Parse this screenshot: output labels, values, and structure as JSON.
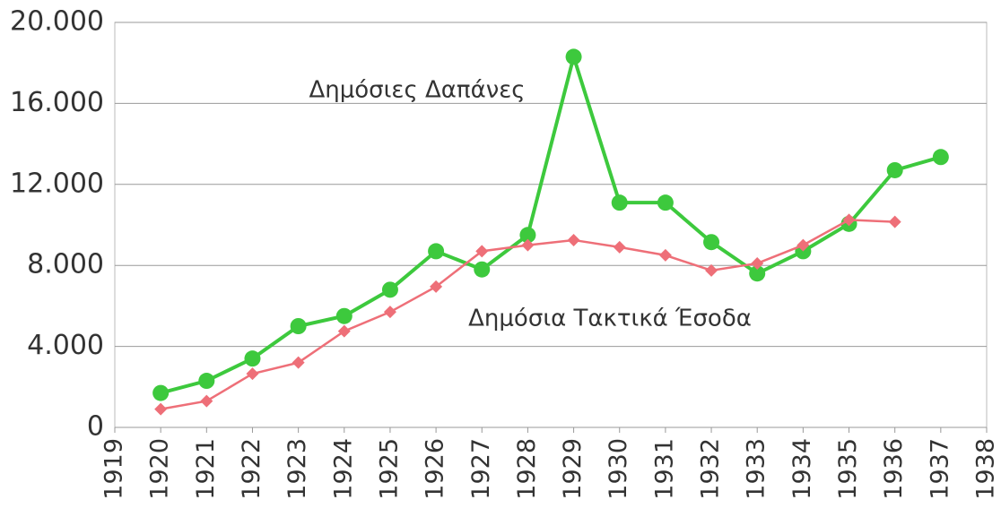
{
  "chart_data": {
    "type": "line",
    "x": [
      1920,
      1921,
      1922,
      1923,
      1924,
      1925,
      1926,
      1927,
      1928,
      1929,
      1930,
      1931,
      1932,
      1933,
      1934,
      1935,
      1936,
      1937
    ],
    "series": [
      {
        "name": "Δημόσιες Δαπάνες",
        "color": "#3dc93d",
        "marker": "circle",
        "values": [
          1700,
          2300,
          3400,
          5000,
          5500,
          6800,
          8700,
          7800,
          9500,
          18300,
          11100,
          11100,
          9150,
          7600,
          8700,
          10050,
          12700,
          13350
        ]
      },
      {
        "name": "Δημόσια Τακτικά Έσοδα",
        "color": "#ee6f78",
        "marker": "diamond",
        "values": [
          900,
          1300,
          2650,
          3200,
          4750,
          5700,
          6950,
          8700,
          9000,
          9250,
          8900,
          8500,
          7750,
          8100,
          9000,
          10250,
          10150,
          null
        ]
      }
    ],
    "xlim": [
      1919,
      1938
    ],
    "xticks": [
      1919,
      1920,
      1921,
      1922,
      1923,
      1924,
      1925,
      1926,
      1927,
      1928,
      1929,
      1930,
      1931,
      1932,
      1933,
      1934,
      1935,
      1936,
      1937,
      1938
    ],
    "ylim": [
      0,
      20000
    ],
    "yticks": [
      0,
      {
        "value": 4000,
        "label": "4.000"
      },
      {
        "value": 8000,
        "label": "8.000"
      },
      {
        "value": 12000,
        "label": "12.000"
      },
      {
        "value": 16000,
        "label": "16.000"
      },
      {
        "value": 20000,
        "label": "20.000"
      }
    ],
    "grid": true
  }
}
